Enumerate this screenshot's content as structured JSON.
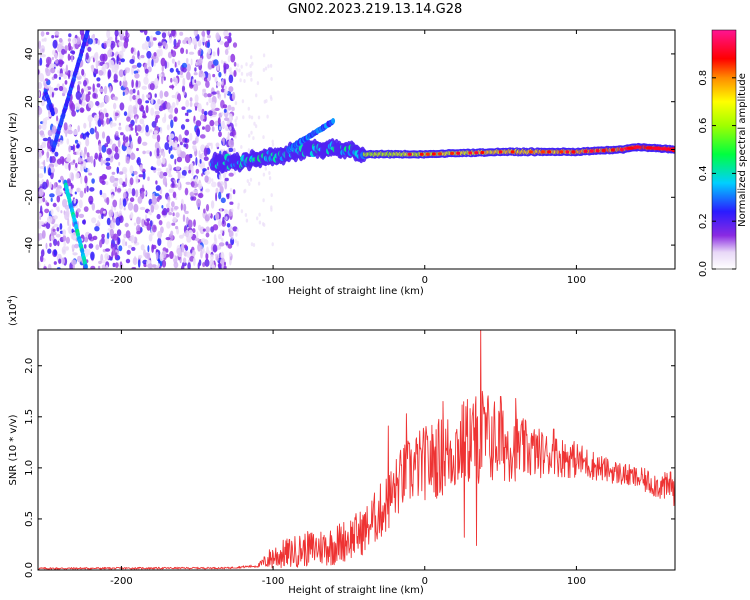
{
  "title": "GN02.2023.219.13.14.G28",
  "chart_data": [
    {
      "type": "heatmap",
      "xlabel": "Height of straight line (km)",
      "ylabel": "Frequency (Hz)",
      "xlim": [
        -255,
        165
      ],
      "ylim": [
        -50,
        50
      ],
      "xticks": [
        -200,
        -100,
        0,
        100
      ],
      "xtick_labels": [
        "-200",
        "-100",
        "0",
        "100"
      ],
      "yticks": [
        -40,
        -20,
        0,
        20,
        40
      ],
      "ytick_labels": [
        "-40",
        "-20",
        "0",
        "20",
        "40"
      ],
      "colorbar": {
        "label": "Normalized spectral amplitude",
        "range": [
          0,
          1
        ],
        "ticks": [
          0.0,
          0.2,
          0.4,
          0.6,
          0.8
        ],
        "tick_labels": [
          "0.0",
          "0.2",
          "0.4",
          "0.6",
          "0.8"
        ],
        "colormap": "rainbow (white-violet-blue-cyan-green-yellow-red-magenta)"
      },
      "main_trace": [
        [
          -140,
          -6
        ],
        [
          -120,
          -5
        ],
        [
          -100,
          -3
        ],
        [
          -80,
          0
        ],
        [
          -60,
          1
        ],
        [
          -40,
          -2
        ],
        [
          -30,
          -2
        ],
        [
          0,
          -2
        ],
        [
          50,
          -1
        ],
        [
          100,
          -1
        ],
        [
          130,
          0
        ],
        [
          140,
          1
        ],
        [
          165,
          0
        ]
      ],
      "secondary_traces": [
        {
          "points": [
            [
              -222,
              50
            ],
            [
              -245,
              0
            ]
          ]
        },
        {
          "points": [
            [
              -237,
              -14
            ],
            [
              -223,
              -50
            ]
          ]
        },
        {
          "points": [
            [
              -250,
              24
            ],
            [
              -245,
              15
            ]
          ]
        },
        {
          "points": [
            [
              -90,
              0
            ],
            [
              -75,
              6
            ],
            [
              -60,
              12
            ]
          ]
        }
      ]
    },
    {
      "type": "line",
      "xlabel": "Height of straight line (km)",
      "ylabel": "SNR (10 * v/v)",
      "y_multiplier": "(x10^4)",
      "xlim": [
        -255,
        165
      ],
      "ylim": [
        0,
        23500
      ],
      "xticks": [
        -200,
        -100,
        0,
        100
      ],
      "xtick_labels": [
        "-200",
        "-100",
        "0",
        "100"
      ],
      "yticks": [
        0,
        5000,
        10000,
        15000,
        20000
      ],
      "ytick_labels": [
        "0.0",
        "0.5",
        "1.0",
        "1.5",
        "2.0"
      ],
      "color": "#ee3333",
      "envelope": {
        "x": [
          -255,
          -130,
          -110,
          -100,
          -80,
          -60,
          -40,
          -25,
          -15,
          -5,
          10,
          20,
          30,
          40,
          50,
          60,
          80,
          100,
          120,
          140,
          150,
          165
        ],
        "mean": [
          150,
          200,
          400,
          1300,
          2000,
          2400,
          3800,
          6500,
          9000,
          10200,
          11000,
          11800,
          12800,
          13000,
          12500,
          12000,
          11300,
          10800,
          9800,
          9000,
          8500,
          7800
        ],
        "amplitude": [
          100,
          80,
          150,
          1300,
          1700,
          2000,
          2300,
          3000,
          3200,
          3500,
          4000,
          4200,
          4500,
          4800,
          4000,
          3300,
          2200,
          1800,
          1200,
          1100,
          1300,
          1600
        ]
      },
      "spikes": [
        [
          37,
          23800
        ],
        [
          38,
          17500
        ],
        [
          12,
          16500
        ],
        [
          -12,
          15300
        ],
        [
          -24,
          14100
        ],
        [
          30,
          15800
        ],
        [
          50,
          17000
        ],
        [
          60,
          16800
        ],
        [
          85,
          13800
        ],
        [
          162,
          9600
        ]
      ],
      "min_dips": [
        [
          34,
          2400
        ],
        [
          26,
          3200
        ]
      ]
    }
  ]
}
